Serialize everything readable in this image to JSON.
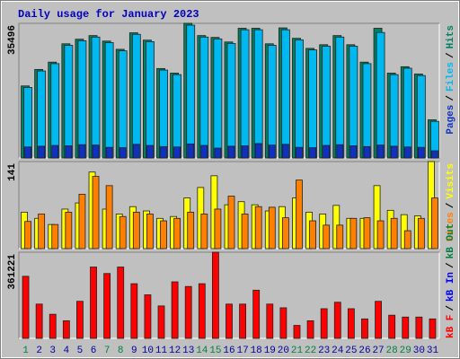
{
  "title": "Daily usage for January 2023",
  "legend_separator": "/",
  "chart_data": [
    {
      "type": "bar",
      "ylim": [
        0,
        35496
      ],
      "yticks": [
        35496
      ],
      "series": [
        {
          "name": "Hits",
          "color": "#008060",
          "values": [
            18990,
            23340,
            25270,
            30100,
            31310,
            32270,
            30820,
            28650,
            33000,
            31070,
            23580,
            22370,
            35496,
            32270,
            31790,
            30580,
            34200,
            34200,
            30100,
            34300,
            31550,
            28890,
            29860,
            32270,
            29860,
            25270,
            34200,
            22370,
            24060,
            22130,
            10060
          ]
        },
        {
          "name": "Files",
          "color": "#00b8f0",
          "values": [
            18593,
            22940,
            24871,
            29701,
            30908,
            31874,
            30425,
            28252,
            32598,
            30667,
            23181,
            21974,
            35013,
            31874,
            31391,
            30184,
            33806,
            33806,
            29701,
            33806,
            31150,
            28493,
            29459,
            31874,
            29459,
            24871,
            33081,
            21974,
            23664,
            21732,
            9659
          ]
        },
        {
          "name": "Pages",
          "color": "#1030c0",
          "values": [
            2900,
            3100,
            3300,
            3200,
            3500,
            3400,
            2800,
            2700,
            3600,
            3300,
            3000,
            2900,
            3700,
            3300,
            2600,
            3100,
            3200,
            3800,
            3400,
            3600,
            2800,
            2700,
            3300,
            3500,
            3200,
            3000,
            3400,
            3100,
            2900,
            2800,
            1900
          ]
        }
      ]
    },
    {
      "type": "bar",
      "ylim": [
        0,
        141
      ],
      "yticks": [
        141
      ],
      "series": [
        {
          "name": "Visits",
          "color": "#ffff00",
          "values": [
            59,
            49,
            39,
            64,
            74,
            124,
            64,
            56,
            68,
            61,
            49,
            52,
            82,
            99,
            118,
            71,
            76,
            71,
            61,
            68,
            82,
            59,
            56,
            70,
            49,
            49,
            102,
            62,
            55,
            53,
            141
          ]
        },
        {
          "name": "Sites",
          "color": "#ff8000",
          "values": [
            44,
            56,
            39,
            59,
            88,
            117,
            102,
            52,
            59,
            56,
            45,
            49,
            59,
            56,
            64,
            85,
            56,
            68,
            67,
            50,
            111,
            45,
            38,
            38,
            49,
            50,
            45,
            49,
            29,
            49,
            82
          ]
        }
      ]
    },
    {
      "type": "bar",
      "ylim": [
        0,
        361221
      ],
      "yticks": [
        361221
      ],
      "categories": [
        "1",
        "2",
        "3",
        "4",
        "5",
        "6",
        "7",
        "8",
        "9",
        "10",
        "11",
        "12",
        "13",
        "14",
        "15",
        "16",
        "17",
        "18",
        "19",
        "20",
        "21",
        "22",
        "23",
        "24",
        "25",
        "26",
        "27",
        "28",
        "29",
        "30",
        "31"
      ],
      "category_colors": [
        "#008040",
        "#0000a0",
        "#0000a0",
        "#0000a0",
        "#0000a0",
        "#0000a0",
        "#008040",
        "#008040",
        "#0000a0",
        "#0000a0",
        "#0000a0",
        "#0000a0",
        "#0000a0",
        "#008040",
        "#008040",
        "#0000a0",
        "#0000a0",
        "#0000a0",
        "#0000a0",
        "#0000a0",
        "#008040",
        "#008040",
        "#0000a0",
        "#0000a0",
        "#0000a0",
        "#0000a0",
        "#0000a0",
        "#008040",
        "#008040",
        "#0000a0",
        "#0000a0"
      ],
      "series": [
        {
          "name": "kB F",
          "color": "#ff0000",
          "values": [
            260235,
            143712,
            100987,
            73798,
            155364,
            299076,
            271887,
            299076,
            229162,
            182553,
            135944,
            236930,
            217510,
            229162,
            361221,
            143712,
            143712,
            201973,
            143712,
            128175,
            54377,
            73798,
            124291,
            151480,
            124291,
            81566,
            155364,
            97103,
            89334,
            89334,
            81566
          ]
        }
      ],
      "legend_extra": [
        {
          "name": "kB In",
          "color": "#0000ff"
        },
        {
          "name": "kB Out",
          "color": "#008040"
        }
      ]
    }
  ]
}
